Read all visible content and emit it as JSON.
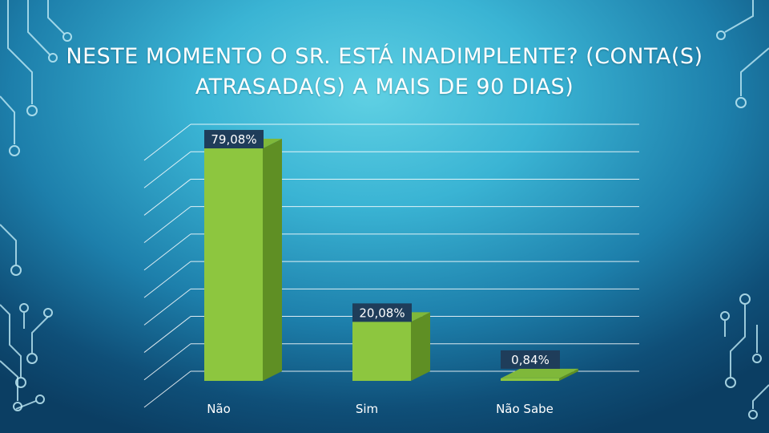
{
  "title": "NESTE MOMENTO O SR. ESTÁ INADIMPLENTE? (CONTA(S) ATRASADA(S) A MAIS DE 90 DIAS)",
  "chart_data": {
    "type": "bar",
    "title": "NESTE MOMENTO O SR. ESTÁ INADIMPLENTE? (CONTA(S) ATRASADA(S) A MAIS DE 90 DIAS)",
    "categories": [
      "Não",
      "Sim",
      "Não Sabe"
    ],
    "values": [
      79.08,
      20.08,
      0.84
    ],
    "data_labels": [
      "79,08%",
      "20,08%",
      "0,84%"
    ],
    "ylim": [
      0,
      90
    ],
    "grid": true,
    "legend": "none",
    "bar_color": "#8dc63f",
    "bar_side_color": "#5f8f24",
    "bar_top_color": "#7fb83a",
    "label_bg_color": "#1f3d5a"
  }
}
